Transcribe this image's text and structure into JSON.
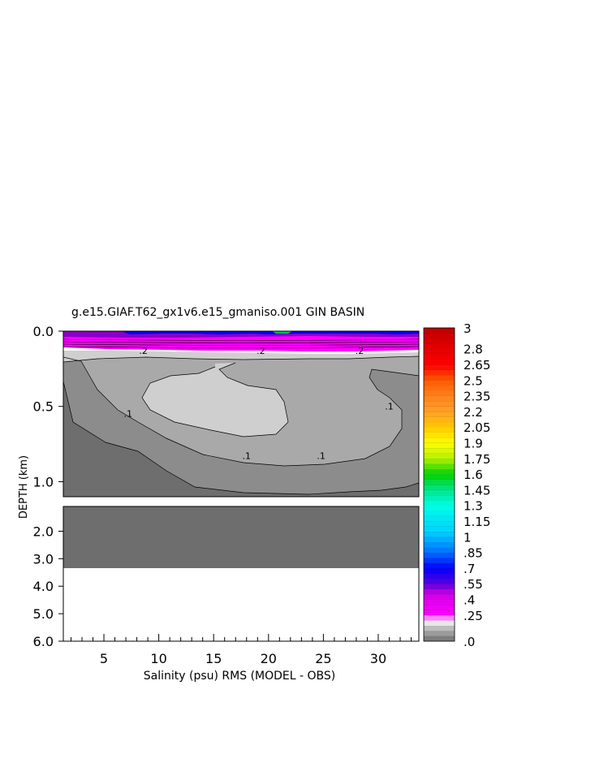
{
  "chart_data": {
    "type": "heatmap",
    "title": "g.e15.GIAF.T62_gx1v6.e15_gmaniso.001 GIN BASIN",
    "xlabel": "Salinity (psu) RMS (MODEL - OBS)",
    "ylabel": "DEPTH (km)",
    "x_ticks": [
      "5",
      "10",
      "15",
      "20",
      "25",
      "30"
    ],
    "x_tick_values": [
      5,
      10,
      15,
      20,
      25,
      30
    ],
    "xlim": [
      1.3,
      33.7
    ],
    "upper_panel": {
      "ylim": [
        0.0,
        1.1
      ],
      "y_ticks": [
        "0.0",
        "0.5",
        "1.0"
      ],
      "y_tick_values": [
        0.0,
        0.5,
        1.0
      ]
    },
    "lower_panel": {
      "ylim": [
        1.1,
        6.0
      ],
      "y_ticks": [
        "2.0",
        "3.0",
        "4.0",
        "5.0",
        "6.0"
      ],
      "y_tick_values": [
        2.0,
        3.0,
        4.0,
        5.0,
        6.0
      ]
    },
    "contour_labels": [
      {
        "text": ".2",
        "x": 8.6,
        "y": 0.15
      },
      {
        "text": ".2",
        "x": 19.3,
        "y": 0.15
      },
      {
        "text": ".2",
        "x": 28.3,
        "y": 0.15
      },
      {
        "text": ".1",
        "x": 7.2,
        "y": 0.57
      },
      {
        "text": ".1",
        "x": 18.0,
        "y": 0.85
      },
      {
        "text": ".1",
        "x": 24.8,
        "y": 0.85
      },
      {
        "text": ".1",
        "x": 31.0,
        "y": 0.52
      }
    ],
    "colorbar": {
      "labels": [
        "3",
        "2.8",
        "2.65",
        "2.5",
        "2.35",
        "2.2",
        "2.05",
        "1.9",
        "1.75",
        "1.6",
        "1.45",
        "1.3",
        "1.15",
        "1",
        ".85",
        ".7",
        ".55",
        ".4",
        ".25",
        ".0"
      ],
      "label_values": [
        3,
        2.8,
        2.65,
        2.5,
        2.35,
        2.2,
        2.05,
        1.9,
        1.75,
        1.6,
        1.45,
        1.3,
        1.15,
        1,
        0.85,
        0.7,
        0.55,
        0.4,
        0.25,
        0
      ],
      "min": 0,
      "max": 3
    },
    "colors": {
      "level_0_05": "#6e6e6e",
      "level_05_10": "#8c8c8c",
      "level_10_15": "#a9a9a9",
      "level_15_20": "#cfcfcf",
      "level_20_25": "#ffffff",
      "magenta": "#ff00ff",
      "purple": "#8a00c8",
      "blue": "#0000ff",
      "cyan": "#00ffff",
      "green": "#00d000",
      "yellow": "#ffff00",
      "orange": "#ff8c00",
      "red": "#ff0000",
      "dark_red": "#c00000"
    }
  }
}
